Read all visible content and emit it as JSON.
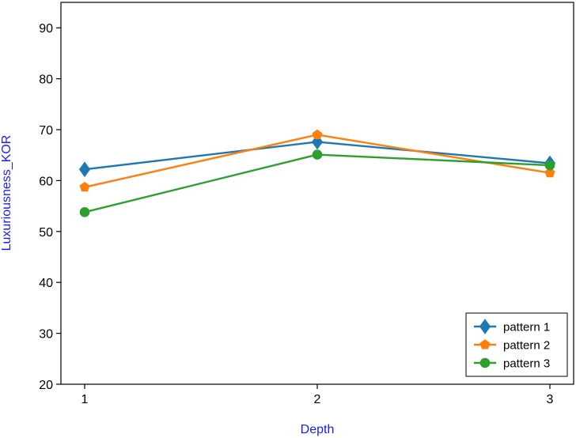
{
  "chart_data": {
    "type": "line",
    "title": "",
    "xlabel": "Depth",
    "ylabel": "Luxuriousness_KOR",
    "x": [
      1,
      2,
      3
    ],
    "x_ticks": [
      "1",
      "2",
      "3"
    ],
    "xlim": [
      0.9,
      3.05
    ],
    "ylim": [
      20,
      95
    ],
    "y_ticks": [
      20,
      30,
      40,
      50,
      60,
      70,
      80,
      90
    ],
    "grid": false,
    "legend_position": "bottom-right",
    "axis_label_color": "#1a1aff",
    "series": [
      {
        "name": "pattern 1",
        "values": [
          62.2,
          67.6,
          63.4
        ],
        "color": "#1f77b4",
        "marker": "diamond"
      },
      {
        "name": "pattern 2",
        "values": [
          58.7,
          69.0,
          61.5
        ],
        "color": "#ff7f0e",
        "marker": "pentagon"
      },
      {
        "name": "pattern 3",
        "values": [
          53.8,
          65.1,
          63.0
        ],
        "color": "#2ca02c",
        "marker": "circle"
      }
    ]
  }
}
